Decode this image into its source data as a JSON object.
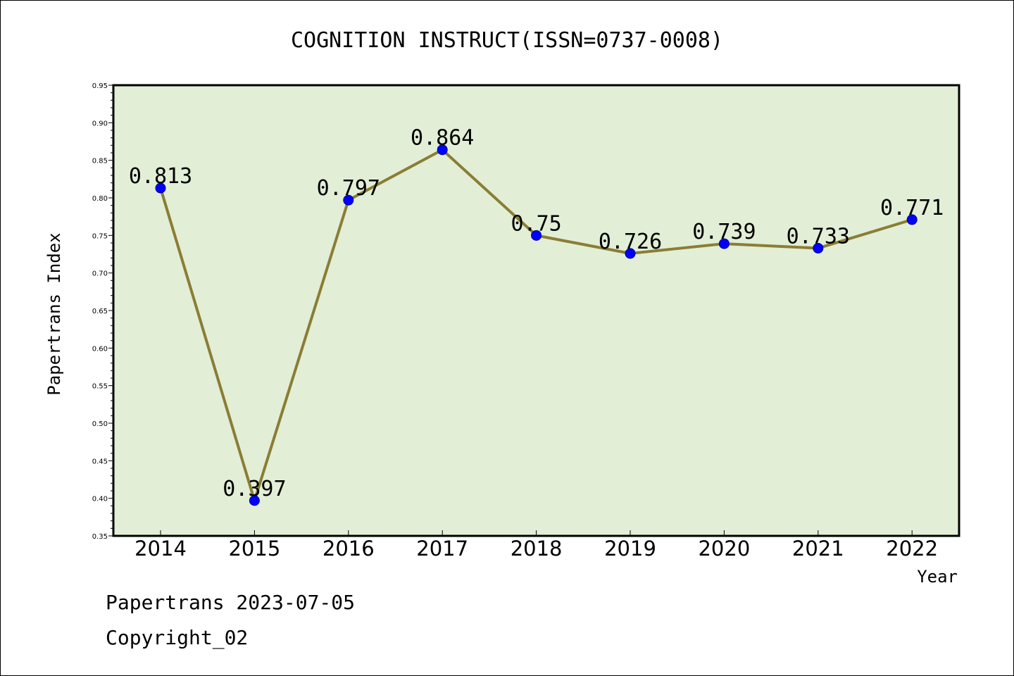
{
  "chart_data": {
    "type": "line",
    "title": "COGNITION INSTRUCT(ISSN=0737-0008)",
    "xlabel": "Year",
    "ylabel": "Papertrans Index",
    "x": [
      "2014",
      "2015",
      "2016",
      "2017",
      "2018",
      "2019",
      "2020",
      "2021",
      "2022"
    ],
    "values": [
      0.813,
      0.397,
      0.797,
      0.864,
      0.75,
      0.726,
      0.739,
      0.733,
      0.771
    ],
    "data_labels": [
      "0.813",
      "0.397",
      "0.797",
      "0.864",
      "0.75",
      "0.726",
      "0.739",
      "0.733",
      "0.771"
    ],
    "ylim": [
      0.35,
      0.95
    ],
    "yticks": [
      "0.35",
      "0.40",
      "0.45",
      "0.50",
      "0.55",
      "0.60",
      "0.65",
      "0.70",
      "0.75",
      "0.80",
      "0.85",
      "0.90",
      "0.95"
    ],
    "grid": false,
    "colors": {
      "plot_background": "#e2efd6",
      "line": "#8b7d35",
      "marker": "#0000ff"
    }
  },
  "footer": {
    "line1": "Papertrans 2023-07-05",
    "line2": "Copyright_02"
  }
}
